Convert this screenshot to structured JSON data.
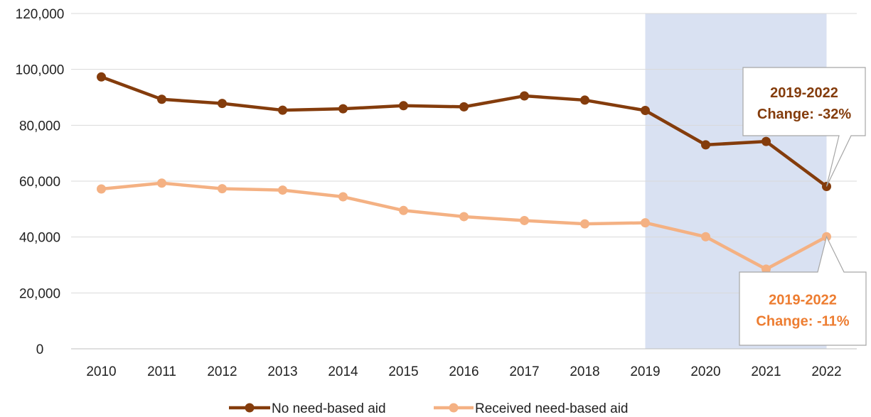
{
  "chart_data": {
    "type": "line",
    "x": [
      "2010",
      "2011",
      "2012",
      "2013",
      "2014",
      "2015",
      "2016",
      "2017",
      "2018",
      "2019",
      "2020",
      "2021",
      "2022"
    ],
    "ylim": [
      0,
      120000
    ],
    "yticks": [
      "0",
      "20,000",
      "40,000",
      "60,000",
      "80,000",
      "100,000",
      "120,000"
    ],
    "ytick_values": [
      0,
      20000,
      40000,
      60000,
      80000,
      100000,
      120000
    ],
    "grid": true,
    "legend_position": "bottom",
    "highlight_range": [
      "2019",
      "2022"
    ],
    "highlight_color": "#d9e1f2",
    "series": [
      {
        "name": "No need-based aid",
        "color": "#843c0c",
        "values": [
          97300,
          89300,
          87800,
          85400,
          85900,
          87000,
          86600,
          90500,
          89000,
          85300,
          73000,
          74200,
          58100
        ]
      },
      {
        "name": "Received need-based aid",
        "color": "#f4b183",
        "values": [
          57200,
          59300,
          57300,
          56800,
          54400,
          49500,
          47300,
          45900,
          44700,
          45100,
          40100,
          28500,
          40100
        ]
      }
    ],
    "annotations": [
      {
        "series": 0,
        "line1": "2019-2022",
        "line2": "Change: -32%",
        "color": "#843c0c"
      },
      {
        "series": 1,
        "line1": "2019-2022",
        "line2": "Change: -11%",
        "color": "#ed7d31"
      }
    ]
  }
}
